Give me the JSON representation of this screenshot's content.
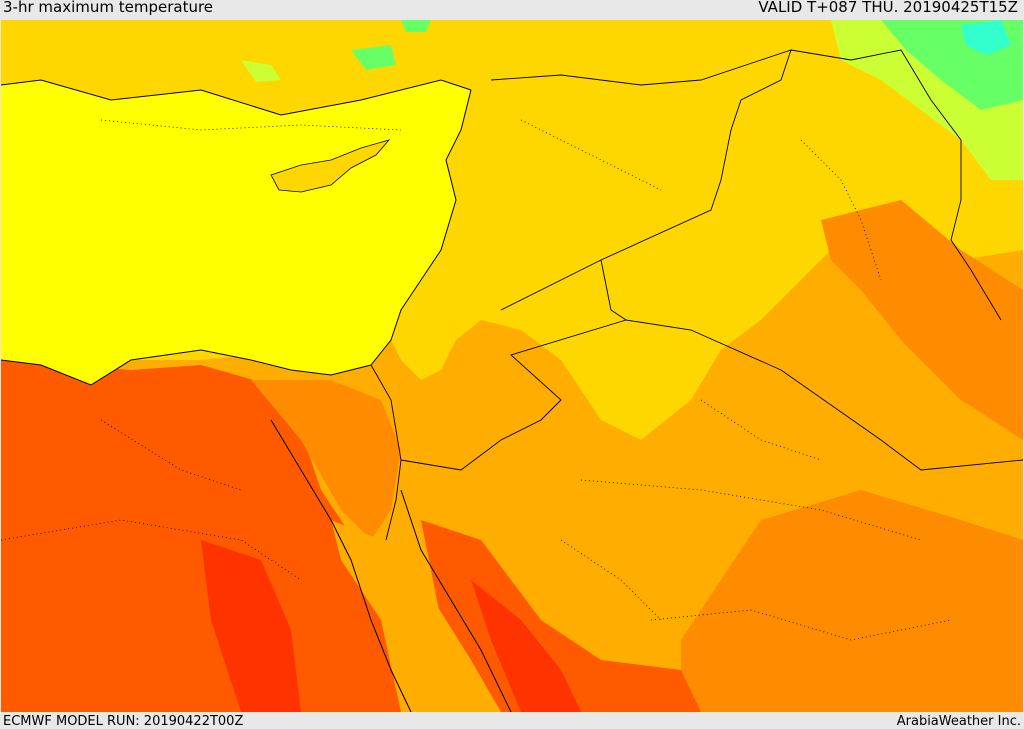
{
  "header": {
    "title": "3-hr maximum temperature",
    "valid_label": "VALID T+087 THU. 20190425T15Z"
  },
  "footer": {
    "model_run": "ECMWF MODEL RUN: 20190422T00Z",
    "credit": "ArabiaWeather Inc."
  },
  "map": {
    "variable": "3-hr maximum temperature",
    "colors": {
      "sea": "#ffff00",
      "hot_base": "#ffad00",
      "warm": "#ffd700",
      "very_hot": "#ff8c00",
      "extreme": "#ff5a00",
      "peak": "#ff3300",
      "cool_yellow_green": "#ccff33",
      "cool_green": "#66ff66",
      "cold_cyan": "#33ffcc"
    },
    "icons": [
      "coastline-lines",
      "country-border-lines",
      "province-border-dotted-lines"
    ]
  }
}
